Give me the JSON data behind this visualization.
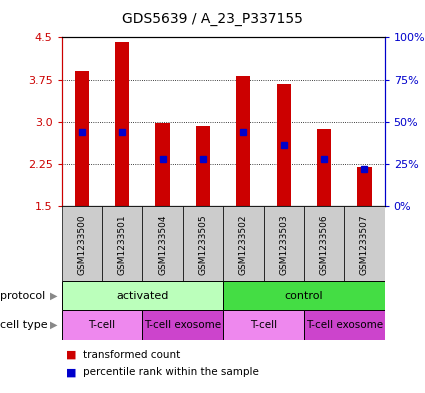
{
  "title": "GDS5639 / A_23_P337155",
  "samples": [
    "GSM1233500",
    "GSM1233501",
    "GSM1233504",
    "GSM1233505",
    "GSM1233502",
    "GSM1233503",
    "GSM1233506",
    "GSM1233507"
  ],
  "transformed_counts": [
    3.9,
    4.42,
    2.98,
    2.93,
    3.82,
    3.68,
    2.88,
    2.2
  ],
  "percentile_ranks": [
    0.44,
    0.44,
    0.28,
    0.28,
    0.44,
    0.36,
    0.28,
    0.22
  ],
  "ylim": [
    1.5,
    4.5
  ],
  "y_left_ticks": [
    1.5,
    2.25,
    3.0,
    3.75,
    4.5
  ],
  "y_right_ticks": [
    0,
    25,
    50,
    75,
    100
  ],
  "y_right_labels": [
    "0%",
    "25%",
    "50%",
    "75%",
    "100%"
  ],
  "bar_color": "#cc0000",
  "dot_color": "#0000cc",
  "bar_width": 0.35,
  "protocol_groups": [
    {
      "label": "activated",
      "start": 0,
      "end": 4,
      "color": "#bbffbb"
    },
    {
      "label": "control",
      "start": 4,
      "end": 8,
      "color": "#44dd44"
    }
  ],
  "cell_type_groups": [
    {
      "label": "T-cell",
      "start": 0,
      "end": 2,
      "color": "#ee88ee"
    },
    {
      "label": "T-cell exosome",
      "start": 2,
      "end": 4,
      "color": "#cc44cc"
    },
    {
      "label": "T-cell",
      "start": 4,
      "end": 6,
      "color": "#ee88ee"
    },
    {
      "label": "T-cell exosome",
      "start": 6,
      "end": 8,
      "color": "#cc44cc"
    }
  ],
  "legend_items": [
    {
      "label": "transformed count",
      "color": "#cc0000"
    },
    {
      "label": "percentile rank within the sample",
      "color": "#0000cc"
    }
  ],
  "grid_color": "#888888",
  "sample_bg_color": "#cccccc",
  "left_axis_color": "#cc0000",
  "right_axis_color": "#0000cc"
}
